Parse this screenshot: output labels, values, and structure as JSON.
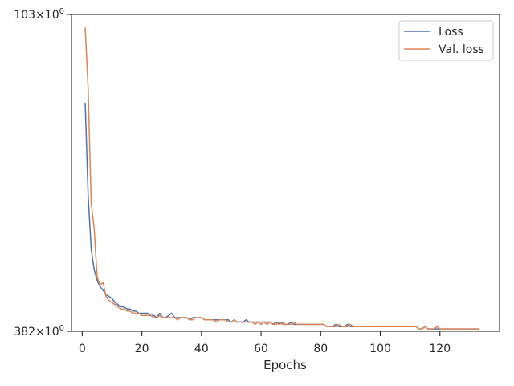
{
  "chart_data": {
    "type": "line",
    "xlabel": "Epochs",
    "ylabel": "",
    "y_scale": "log",
    "xlim": [
      -3.6,
      140
    ],
    "ylim": [
      103,
      382
    ],
    "x_ticks": [
      0,
      20,
      40,
      60,
      80,
      100,
      120
    ],
    "x_tick_labels": [
      "0",
      "20",
      "40",
      "60",
      "80",
      "100",
      "120"
    ],
    "y_ticks": [
      103,
      382
    ],
    "y_tick_labels": [
      {
        "base": "382",
        "exp": "0"
      },
      {
        "base": "103",
        "exp": "0"
      }
    ],
    "grid": false,
    "legend_position": "top-right",
    "series": [
      {
        "name": "Loss",
        "color": "#4c72b0",
        "x_start": 1,
        "values": [
          265,
          180,
          145,
          133,
          127,
          124,
          122,
          120,
          119,
          118,
          116,
          115,
          114,
          114,
          113,
          113,
          112,
          112,
          111,
          111,
          111,
          111,
          110,
          110,
          109,
          111,
          109,
          109,
          110,
          111,
          109,
          109,
          109,
          109,
          109,
          108,
          109,
          109,
          109,
          109,
          108,
          108,
          108,
          108,
          108,
          108,
          108,
          108,
          108,
          107,
          108,
          107,
          107,
          107,
          108,
          107,
          107,
          107,
          107,
          107,
          107,
          107,
          107,
          106,
          107,
          106,
          107,
          106,
          106,
          107,
          106,
          106,
          106,
          106,
          106,
          106,
          106,
          106,
          106,
          106,
          106,
          105,
          105,
          105,
          106,
          105,
          105,
          105,
          106,
          105,
          105,
          105,
          105,
          105,
          105,
          105,
          105,
          105,
          105,
          105,
          105,
          105,
          105,
          105,
          105,
          105,
          105,
          105,
          105,
          105,
          105,
          105,
          104,
          104,
          105,
          104,
          104,
          104,
          104,
          104,
          104,
          104,
          104,
          104,
          104,
          104,
          104,
          104,
          104,
          104,
          104,
          104,
          104
        ]
      },
      {
        "name": "Val. loss",
        "color": "#dd8452",
        "x_start": 1,
        "values": [
          362,
          280,
          175,
          158,
          129,
          125,
          126,
          119,
          117,
          116,
          115,
          114,
          113,
          113,
          112,
          112,
          111,
          111,
          111,
          110,
          110,
          110,
          110,
          109,
          109,
          110,
          109,
          109,
          109,
          109,
          109,
          108,
          109,
          109,
          109,
          108,
          108,
          109,
          109,
          109,
          108,
          108,
          108,
          108,
          107,
          108,
          108,
          108,
          107,
          107,
          108,
          107,
          107,
          107,
          107,
          107,
          107,
          106,
          107,
          106,
          107,
          106,
          107,
          106,
          106,
          107,
          106,
          106,
          106,
          106,
          107,
          106,
          106,
          106,
          106,
          106,
          106,
          106,
          106,
          106,
          106,
          105,
          105,
          105,
          105,
          106,
          105,
          105,
          105,
          106,
          105,
          105,
          105,
          105,
          105,
          105,
          105,
          105,
          105,
          105,
          105,
          105,
          105,
          105,
          105,
          105,
          105,
          105,
          105,
          105,
          105,
          105,
          104,
          104,
          105,
          104,
          104,
          104,
          105,
          104,
          104,
          104,
          104,
          104,
          104,
          104,
          104,
          104,
          104,
          104,
          104,
          104,
          104
        ]
      }
    ]
  }
}
